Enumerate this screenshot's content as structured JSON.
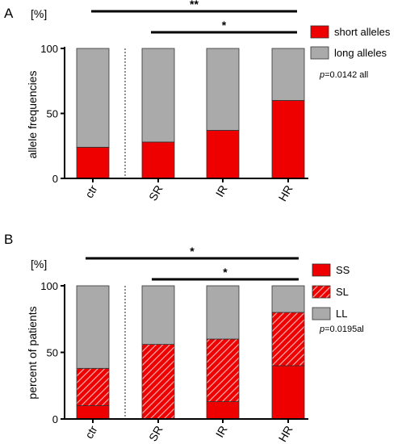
{
  "chart_data": [
    {
      "type": "bar",
      "stacked": true,
      "panel_label": "A",
      "unit_label": "[%]",
      "ylabel": "allele frequencies",
      "categories": [
        "ctr",
        "SR",
        "IR",
        "HR"
      ],
      "series": [
        {
          "name": "short alleles",
          "values": [
            24,
            28,
            37,
            60
          ],
          "color": "#ee0000",
          "pattern": "solid"
        },
        {
          "name": "long alleles",
          "values": [
            76,
            72,
            63,
            40
          ],
          "color": "#aaaaaa",
          "pattern": "solid"
        }
      ],
      "ylim": [
        0,
        100
      ],
      "yticks": [
        0,
        50,
        100
      ],
      "significance": [
        {
          "from": "ctr",
          "to": "HR",
          "label": "**"
        },
        {
          "from": "SR",
          "to": "HR",
          "label": "*"
        }
      ],
      "annotation": {
        "italic": "p",
        "text": "=0.0142 all"
      },
      "legend_position": "top-right",
      "separator_after": "ctr"
    },
    {
      "type": "bar",
      "stacked": true,
      "panel_label": "B",
      "unit_label": "[%]",
      "ylabel": "percent of patients",
      "categories": [
        "ctr",
        "SR",
        "IR",
        "HR"
      ],
      "series": [
        {
          "name": "SS",
          "values": [
            10,
            0,
            13,
            40
          ],
          "color": "#ee0000",
          "pattern": "solid"
        },
        {
          "name": "SL",
          "values": [
            28,
            56,
            47,
            40
          ],
          "color": "#ee0000",
          "pattern": "hatched"
        },
        {
          "name": "LL",
          "values": [
            62,
            44,
            40,
            20
          ],
          "color": "#aaaaaa",
          "pattern": "solid"
        }
      ],
      "ylim": [
        0,
        100
      ],
      "yticks": [
        0,
        50,
        100
      ],
      "significance": [
        {
          "from": "ctr",
          "to": "HR",
          "label": "*"
        },
        {
          "from": "SR",
          "to": "HR",
          "label": "*"
        }
      ],
      "annotation": {
        "italic": "p",
        "text": "=0.0195al"
      },
      "legend_position": "top-right",
      "separator_after": "ctr"
    }
  ]
}
